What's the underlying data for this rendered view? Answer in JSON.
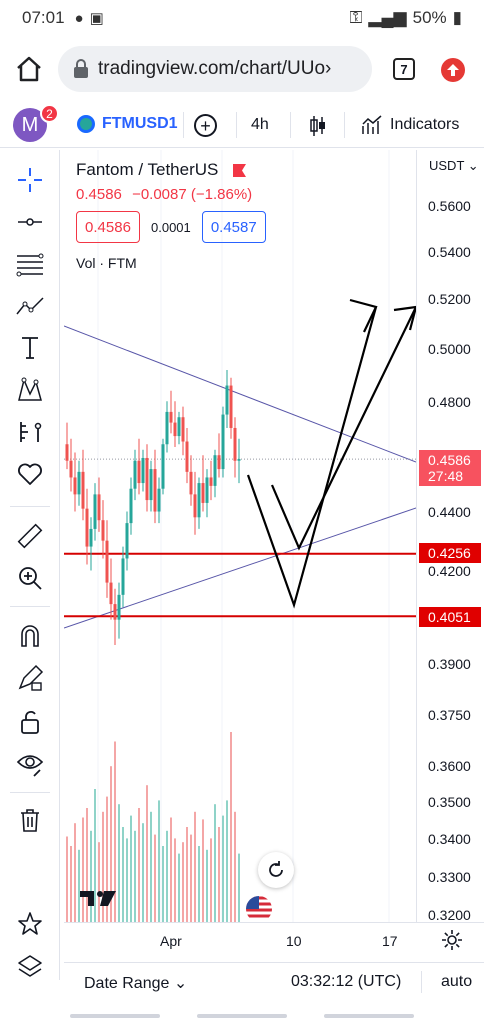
{
  "status": {
    "time": "07:01",
    "battery": "50%"
  },
  "browser": {
    "url": "tradingview.com/chart/UUo›",
    "tab_count": "7"
  },
  "toolbar": {
    "avatar_letter": "M",
    "notifications": "2",
    "symbol": "FTMUSD1",
    "interval": "4h",
    "indicators_label": "Indicators"
  },
  "legend": {
    "title": "Fantom / TetherUS",
    "price": "0.4586",
    "change": "−0.0087 (−1.86%)",
    "bid": "0.4586",
    "spread": "0.0001",
    "ask": "0.4587",
    "volume": "Vol · FTM"
  },
  "price_scale": {
    "currency": "USDT ⌄",
    "ticks": [
      "0.5600",
      "0.5400",
      "0.5200",
      "0.5000",
      "0.4800",
      "0.4400",
      "0.4200",
      "0.3900",
      "0.3750",
      "0.3600",
      "0.3500",
      "0.3400",
      "0.3300",
      "0.3200"
    ],
    "current_price": "0.4586",
    "countdown": "27:48",
    "line_labels": [
      "0.4256",
      "0.4051"
    ]
  },
  "time_scale": {
    "labels": [
      "Apr",
      "10",
      "17"
    ]
  },
  "bottom": {
    "date_range": "Date Range",
    "clock": "03:32:12 (UTC)",
    "scale_mode": "auto"
  },
  "colors": {
    "up": "#26a69a",
    "down": "#ef5350",
    "accent": "#2962ff",
    "hline": "#d50000",
    "trendline": "#5856a8"
  },
  "chart_data": {
    "type": "candlestick",
    "title": "Fantom / TetherUS",
    "interval": "4h",
    "y_scale": "log",
    "ylim": [
      0.315,
      0.585
    ],
    "last_price": 0.4586,
    "horizontal_lines": [
      0.4256,
      0.4051
    ],
    "candles": [
      {
        "o": 0.464,
        "h": 0.472,
        "l": 0.455,
        "c": 0.458
      },
      {
        "o": 0.458,
        "h": 0.466,
        "l": 0.447,
        "c": 0.452
      },
      {
        "o": 0.452,
        "h": 0.461,
        "l": 0.44,
        "c": 0.446
      },
      {
        "o": 0.446,
        "h": 0.458,
        "l": 0.442,
        "c": 0.454
      },
      {
        "o": 0.454,
        "h": 0.462,
        "l": 0.437,
        "c": 0.441
      },
      {
        "o": 0.441,
        "h": 0.448,
        "l": 0.422,
        "c": 0.428
      },
      {
        "o": 0.428,
        "h": 0.438,
        "l": 0.42,
        "c": 0.434
      },
      {
        "o": 0.434,
        "h": 0.45,
        "l": 0.43,
        "c": 0.446
      },
      {
        "o": 0.446,
        "h": 0.452,
        "l": 0.433,
        "c": 0.437
      },
      {
        "o": 0.437,
        "h": 0.444,
        "l": 0.424,
        "c": 0.43
      },
      {
        "o": 0.43,
        "h": 0.437,
        "l": 0.411,
        "c": 0.416
      },
      {
        "o": 0.416,
        "h": 0.424,
        "l": 0.404,
        "c": 0.409
      },
      {
        "o": 0.409,
        "h": 0.414,
        "l": 0.396,
        "c": 0.404
      },
      {
        "o": 0.404,
        "h": 0.416,
        "l": 0.398,
        "c": 0.412
      },
      {
        "o": 0.412,
        "h": 0.428,
        "l": 0.408,
        "c": 0.424
      },
      {
        "o": 0.424,
        "h": 0.44,
        "l": 0.42,
        "c": 0.436
      },
      {
        "o": 0.436,
        "h": 0.452,
        "l": 0.432,
        "c": 0.448
      },
      {
        "o": 0.448,
        "h": 0.462,
        "l": 0.444,
        "c": 0.458
      },
      {
        "o": 0.458,
        "h": 0.466,
        "l": 0.446,
        "c": 0.45
      },
      {
        "o": 0.45,
        "h": 0.462,
        "l": 0.447,
        "c": 0.459
      },
      {
        "o": 0.459,
        "h": 0.464,
        "l": 0.44,
        "c": 0.444
      },
      {
        "o": 0.444,
        "h": 0.458,
        "l": 0.44,
        "c": 0.455
      },
      {
        "o": 0.455,
        "h": 0.462,
        "l": 0.436,
        "c": 0.44
      },
      {
        "o": 0.44,
        "h": 0.452,
        "l": 0.436,
        "c": 0.448
      },
      {
        "o": 0.448,
        "h": 0.466,
        "l": 0.446,
        "c": 0.464
      },
      {
        "o": 0.464,
        "h": 0.48,
        "l": 0.461,
        "c": 0.476
      },
      {
        "o": 0.476,
        "h": 0.484,
        "l": 0.468,
        "c": 0.472
      },
      {
        "o": 0.472,
        "h": 0.48,
        "l": 0.463,
        "c": 0.467
      },
      {
        "o": 0.467,
        "h": 0.476,
        "l": 0.464,
        "c": 0.474
      },
      {
        "o": 0.474,
        "h": 0.478,
        "l": 0.46,
        "c": 0.465
      },
      {
        "o": 0.465,
        "h": 0.47,
        "l": 0.45,
        "c": 0.454
      },
      {
        "o": 0.454,
        "h": 0.46,
        "l": 0.442,
        "c": 0.446
      },
      {
        "o": 0.446,
        "h": 0.454,
        "l": 0.432,
        "c": 0.438
      },
      {
        "o": 0.438,
        "h": 0.452,
        "l": 0.434,
        "c": 0.45
      },
      {
        "o": 0.45,
        "h": 0.46,
        "l": 0.44,
        "c": 0.443
      },
      {
        "o": 0.443,
        "h": 0.455,
        "l": 0.438,
        "c": 0.452
      },
      {
        "o": 0.452,
        "h": 0.458,
        "l": 0.444,
        "c": 0.449
      },
      {
        "o": 0.449,
        "h": 0.462,
        "l": 0.445,
        "c": 0.46
      },
      {
        "o": 0.46,
        "h": 0.468,
        "l": 0.452,
        "c": 0.455
      },
      {
        "o": 0.455,
        "h": 0.478,
        "l": 0.452,
        "c": 0.475
      },
      {
        "o": 0.475,
        "h": 0.492,
        "l": 0.47,
        "c": 0.486
      },
      {
        "o": 0.486,
        "h": 0.489,
        "l": 0.466,
        "c": 0.47
      },
      {
        "o": 0.47,
        "h": 0.474,
        "l": 0.452,
        "c": 0.458
      },
      {
        "o": 0.458,
        "h": 0.466,
        "l": 0.45,
        "c": 0.4586
      }
    ],
    "volume": [
      0.45,
      0.4,
      0.52,
      0.38,
      0.55,
      0.6,
      0.48,
      0.7,
      0.42,
      0.58,
      0.66,
      0.82,
      0.95,
      0.62,
      0.5,
      0.44,
      0.56,
      0.48,
      0.6,
      0.52,
      0.72,
      0.58,
      0.46,
      0.64,
      0.4,
      0.48,
      0.55,
      0.44,
      0.36,
      0.42,
      0.5,
      0.46,
      0.58,
      0.4,
      0.54,
      0.38,
      0.44,
      0.62,
      0.5,
      0.56,
      0.64,
      1.0,
      0.58,
      0.36
    ]
  }
}
